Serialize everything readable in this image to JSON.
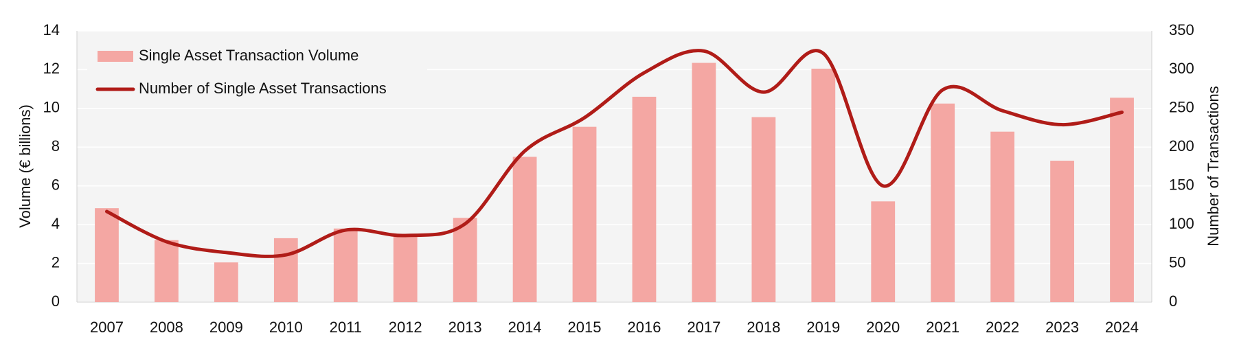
{
  "chart_data": {
    "type": "bar+line",
    "categories": [
      "2007",
      "2008",
      "2009",
      "2010",
      "2011",
      "2012",
      "2013",
      "2014",
      "2015",
      "2016",
      "2017",
      "2018",
      "2019",
      "2020",
      "2021",
      "2022",
      "2023",
      "2024"
    ],
    "series": [
      {
        "name": "Single Asset Transaction Volume",
        "type": "bar",
        "color": "#f4a7a3",
        "values": [
          4.85,
          3.2,
          2.05,
          3.3,
          3.8,
          3.5,
          4.35,
          7.5,
          9.05,
          10.6,
          12.35,
          9.55,
          12.05,
          5.2,
          10.25,
          8.8,
          7.3,
          10.55
        ]
      },
      {
        "name": "Number of Single Asset Transactions",
        "type": "line",
        "axis": "y2",
        "color": "#b01c18",
        "values": [
          117,
          78,
          64,
          61,
          93,
          86,
          101,
          195,
          238,
          296,
          324,
          271,
          321,
          150,
          274,
          247,
          229,
          245
        ]
      }
    ],
    "ylabel": "Volume (€ billions)",
    "y2label": "Number of Transactions",
    "ylim": [
      0,
      14
    ],
    "yticks": [
      0,
      2,
      4,
      6,
      8,
      10,
      12,
      14
    ],
    "y2lim": [
      0,
      350
    ],
    "y2ticks": [
      0,
      50,
      100,
      150,
      200,
      250,
      300,
      350
    ],
    "grid": true,
    "legend": "upper left"
  }
}
